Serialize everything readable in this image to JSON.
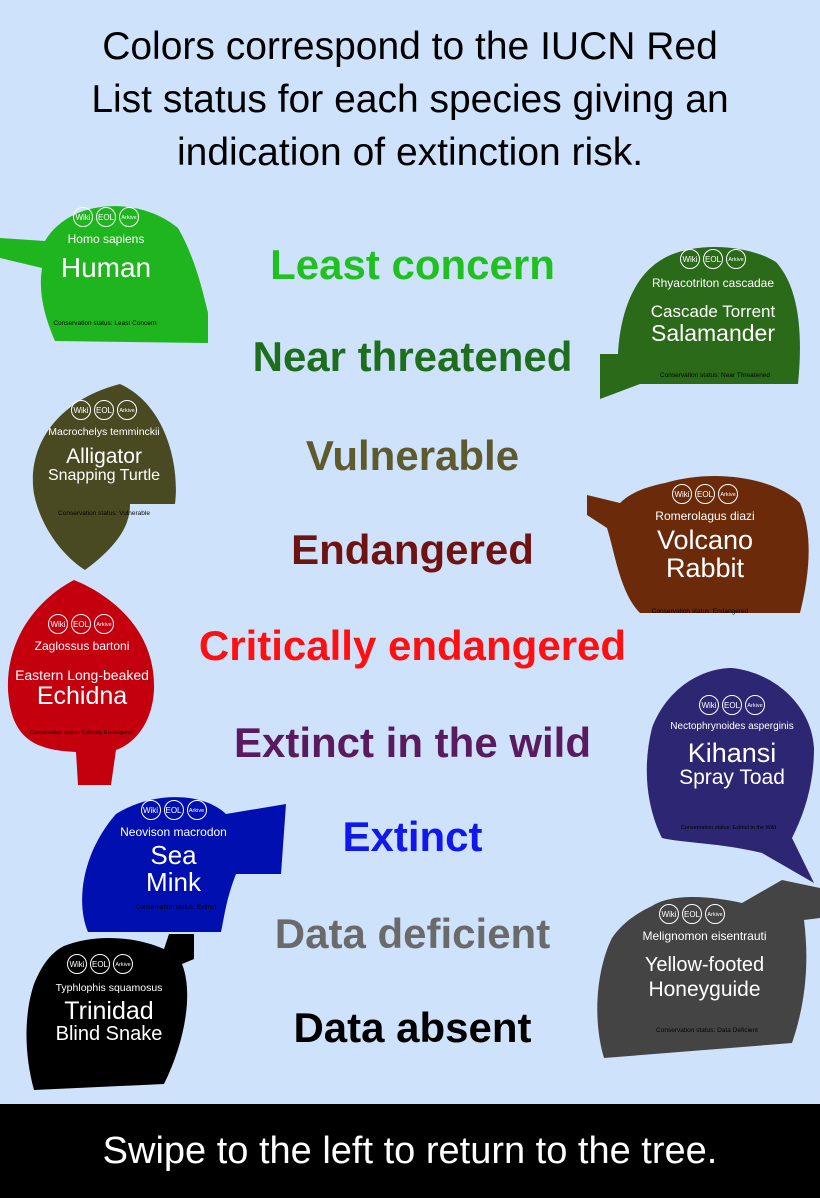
{
  "intro": {
    "line1": "Colors correspond to the IUCN Red",
    "line2": "List status for each species giving an",
    "line3": "indication of extinction risk."
  },
  "statuses": [
    {
      "label": "Least concern",
      "color": "#20c020"
    },
    {
      "label": "Near threatened",
      "color": "#1e6e1e"
    },
    {
      "label": "Vulnerable",
      "color": "#5e5a2e"
    },
    {
      "label": "Endangered",
      "color": "#6e1212"
    },
    {
      "label": "Critically endangered",
      "color": "#ff1010"
    },
    {
      "label": "Extinct in the wild",
      "color": "#5a1a5e"
    },
    {
      "label": "Extinct",
      "color": "#1018ee"
    },
    {
      "label": "Data deficient",
      "color": "#6a6a6a"
    },
    {
      "label": "Data absent",
      "color": "#000000"
    }
  ],
  "leaf_links": {
    "wiki": "Wiki",
    "eol": "EOL",
    "arkive": "Arkive"
  },
  "leaves": [
    {
      "scientific": "Homo sapiens",
      "common1": "Human",
      "common2": "",
      "conservation": "Conservation status: Least Concern",
      "color": "#1fb51f"
    },
    {
      "scientific": "Rhyacotriton cascadae",
      "common1": "Cascade Torrent",
      "common2": "Salamander",
      "conservation": "Conservation status: Near Threatened",
      "color": "#2a6a18"
    },
    {
      "scientific": "Macrochelys temminckii",
      "common1": "Alligator",
      "common2": "Snapping Turtle",
      "conservation": "Conservation status: Vulnerable",
      "color": "#4a4a22"
    },
    {
      "scientific": "Romerolagus diazi",
      "common1": "Volcano",
      "common2": "Rabbit",
      "conservation": "Conservation status: Endangered",
      "color": "#6b2a0a"
    },
    {
      "scientific": "Zaglossus bartoni",
      "common1": "Eastern Long-beaked",
      "common2": "Echidna",
      "conservation": "Conservation status: Critically Endangered",
      "color": "#c4000e"
    },
    {
      "scientific": "Nectophrynoides asperginis",
      "common1": "Kihansi",
      "common2": "Spray Toad",
      "conservation": "Conservation status: Extinct in the Wild",
      "color": "#2d2672"
    },
    {
      "scientific": "Neovison macrodon",
      "common1": "Sea",
      "common2": "Mink",
      "conservation": "Conservation status: Extinct",
      "color": "#0010b0"
    },
    {
      "scientific": "Melignomon eisentrauti",
      "common1": "Yellow-footed",
      "common2": "Honeyguide",
      "conservation": "Conservation status: Data Deficient",
      "color": "#444444"
    },
    {
      "scientific": "Typhlophis squamosus",
      "common1": "Trinidad",
      "common2": "Blind Snake",
      "conservation": "Conservation status: Not Evaluated",
      "color": "#000000"
    }
  ],
  "footer": {
    "text": "Swipe to the left to return to the tree."
  }
}
